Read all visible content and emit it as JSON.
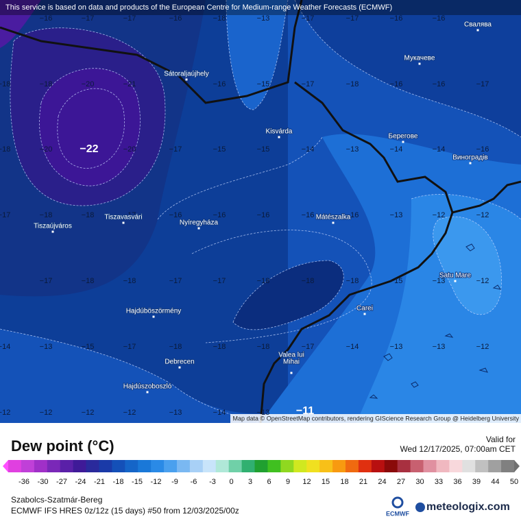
{
  "header": {
    "notice": "This service is based on data and products of the European Centre for Medium-range Weather Forecasts (ECMWF)"
  },
  "map": {
    "cities": [
      "Sátoraljaújhely",
      "Kisvárda",
      "Мукачеве",
      "Свалява",
      "Берегове",
      "Виноградів",
      "Tiszavasvári",
      "Nyíregyháza",
      "Mátészalka",
      "Tiszaújváros",
      "Satu Mare",
      "Hajdúböszörmény",
      "Carei",
      "Debrecen",
      "Valea lui",
      "Mihai",
      "Hajdúszoboszló"
    ],
    "grid_labels": [
      [
        "−16",
        "−17",
        "−17",
        "−16",
        "−18",
        "−13",
        "−17",
        "−17",
        "−16",
        "−16"
      ],
      [
        "−18",
        "−18",
        "−20",
        "−21",
        "−16",
        "−15",
        "−17",
        "−18",
        "−16",
        "−16",
        "−17"
      ],
      [
        "−18",
        "−20",
        "−20",
        "−17",
        "−15",
        "−15",
        "−14",
        "−13",
        "−14",
        "−14",
        "−16"
      ],
      [
        "−17",
        "−18",
        "−18",
        "−17",
        "−16",
        "−16",
        "−16",
        "−16",
        "−16",
        "−13",
        "−12",
        "−12"
      ],
      [
        "−17",
        "−18",
        "−18",
        "−17",
        "−17",
        "−18",
        "−18",
        "−18",
        "−15",
        "−13",
        "−12"
      ],
      [
        "−14",
        "−13",
        "−15",
        "−17",
        "−18",
        "−18",
        "−18",
        "−17",
        "−14",
        "−13",
        "−13",
        "−12"
      ],
      [
        "−12",
        "−12",
        "−12",
        "−12",
        "−13",
        "−14",
        "−13"
      ]
    ],
    "extremes": [
      "−22",
      "−11"
    ],
    "attribution": "Map data © OpenStreetMap contributors, rendering GIScience Research Group @ Heidelberg University"
  },
  "legend": {
    "title": "Dew point (°C)",
    "ticks": [
      -36,
      -30,
      -27,
      -24,
      -21,
      -18,
      -15,
      -12,
      -9,
      -6,
      -3,
      0,
      3,
      6,
      9,
      12,
      15,
      18,
      21,
      24,
      27,
      30,
      33,
      36,
      39,
      44,
      50
    ]
  },
  "valid": {
    "label": "Valid for",
    "time": "Wed 12/17/2025, 07:00am CET"
  },
  "footer": {
    "region": "Szabolcs-Szatmár-Bereg",
    "model": "ECMWF IFS HRES 0z/12z (15 days) #50 from  12/03/2025/00z",
    "ecmwf": "ECMWF",
    "brand": "meteologix.com"
  }
}
